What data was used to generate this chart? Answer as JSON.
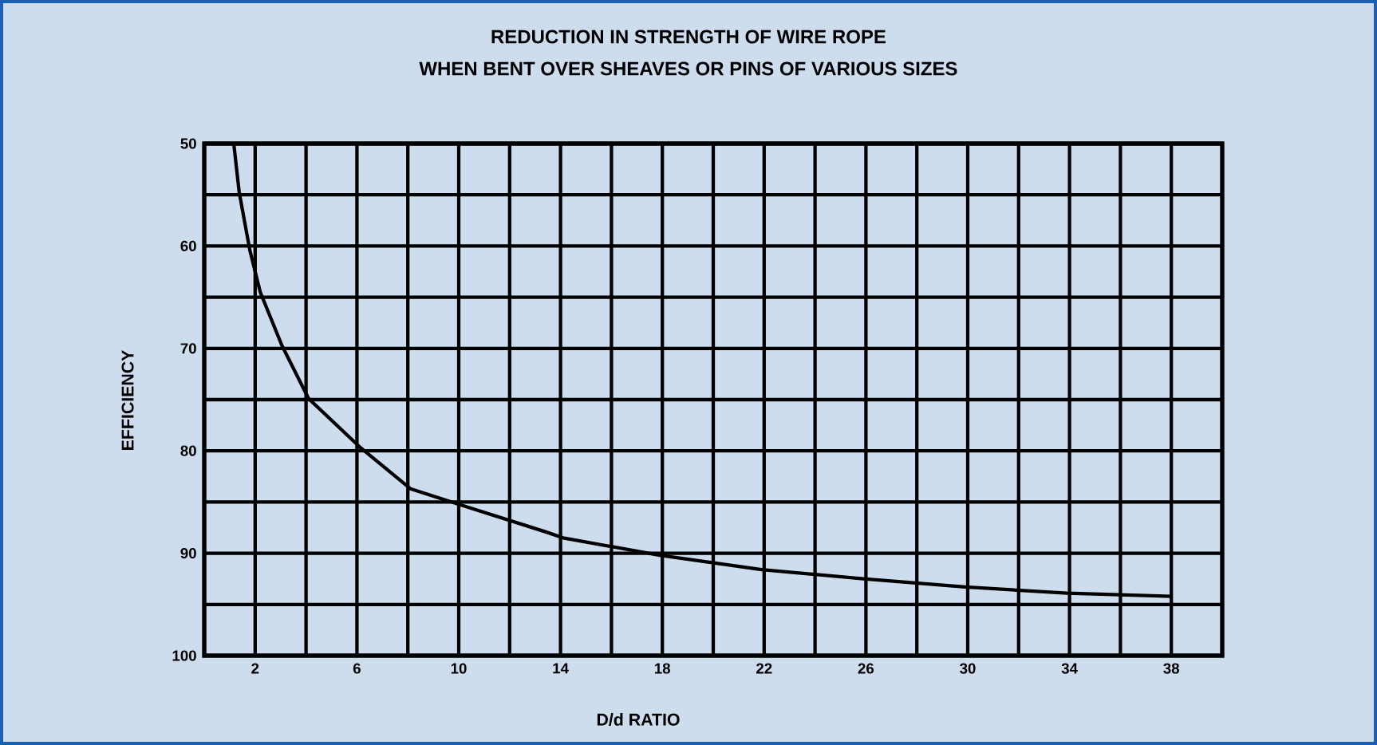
{
  "chart_data": {
    "type": "line",
    "title": "REDUCTION IN STRENGTH OF WIRE ROPE",
    "subtitle": "WHEN BENT OVER SHEAVES OR PINS OF VARIOUS SIZES",
    "xlabel": "D/d RATIO",
    "ylabel": "EFFICIENCY",
    "series": [
      {
        "color": "#000000",
        "line_style": "solid",
        "x": [
          1.16,
          1.37,
          1.79,
          2.2,
          3.05,
          4.1,
          6.1,
          8.1,
          10.1,
          13.4,
          14.1,
          17.9,
          21.9,
          25.9,
          29.9,
          33.9,
          38.0
        ],
        "values": [
          50,
          54.7,
          60.4,
          64.5,
          69.7,
          74.9,
          79.6,
          83.7,
          85.3,
          87.9,
          88.5,
          90.2,
          91.6,
          92.5,
          93.3,
          93.9,
          94.2
        ]
      }
    ],
    "xlim": [
      0,
      40
    ],
    "ylim": [
      100,
      50
    ],
    "xticks": [
      {
        "value": 0,
        "label": null
      },
      2,
      {
        "value": 4,
        "label": null
      },
      6,
      {
        "value": 8,
        "label": null
      },
      10,
      {
        "value": 12,
        "label": null
      },
      14,
      {
        "value": 16,
        "label": null
      },
      18,
      {
        "value": 20,
        "label": null
      },
      22,
      {
        "value": 24,
        "label": null
      },
      26,
      {
        "value": 28,
        "label": null
      },
      30,
      {
        "value": 32,
        "label": null
      },
      34,
      {
        "value": 36,
        "label": null
      },
      38,
      {
        "value": 40,
        "label": null
      }
    ],
    "yticks": [
      50,
      {
        "value": 55,
        "label": null
      },
      60,
      {
        "value": 65,
        "label": null
      },
      70,
      {
        "value": 75,
        "label": null
      },
      80,
      {
        "value": 85,
        "label": null
      },
      90,
      {
        "value": 95,
        "label": null
      },
      100
    ],
    "grid": true
  }
}
